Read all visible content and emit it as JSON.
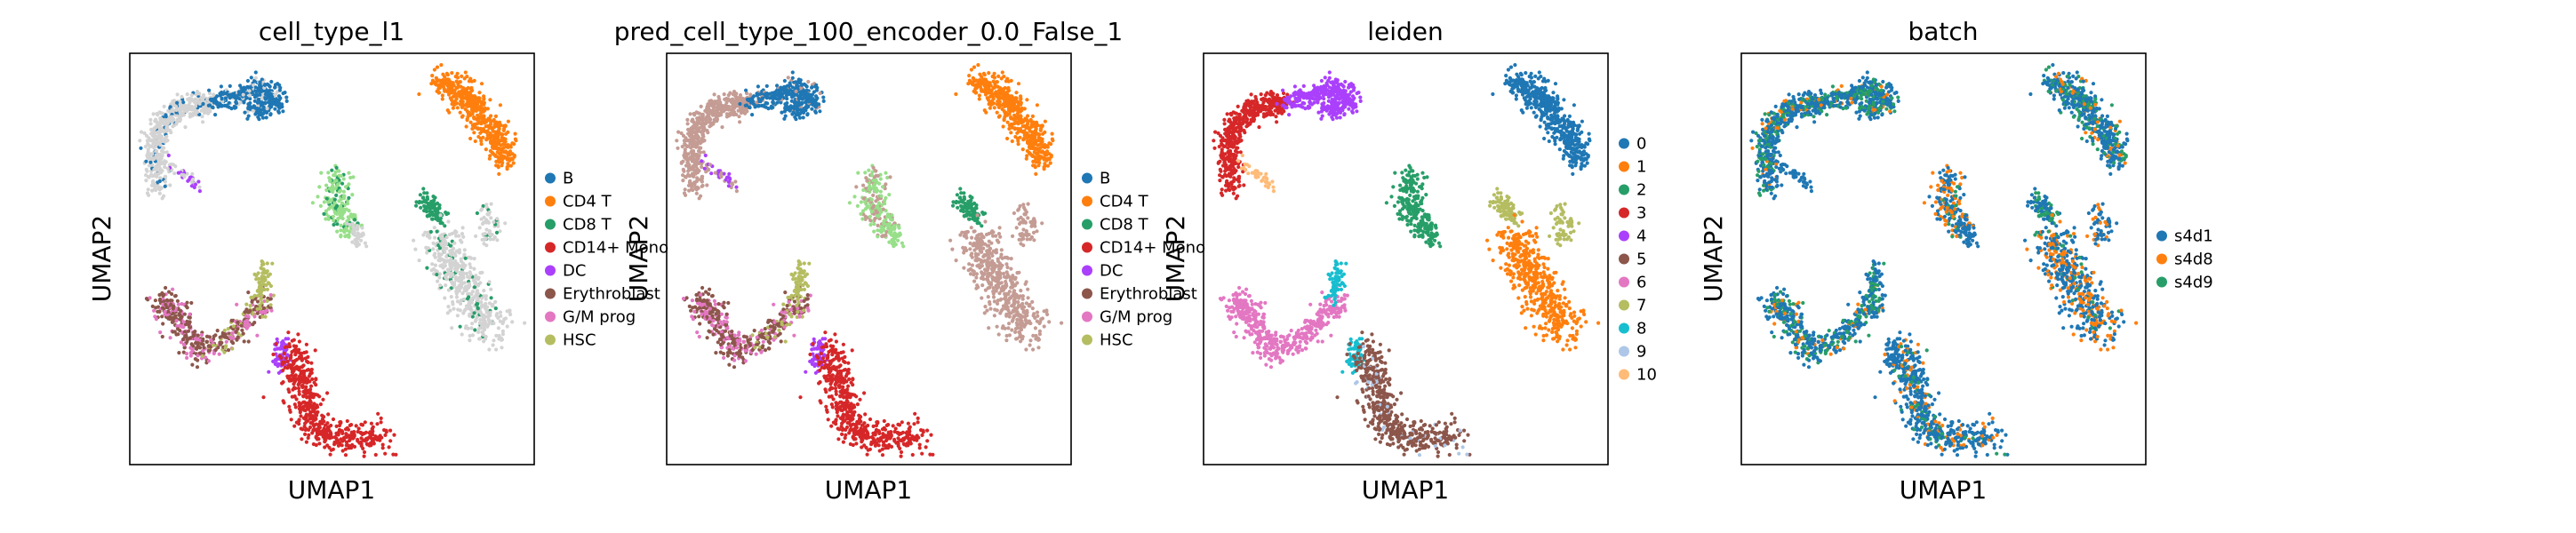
{
  "palette": {
    "B": "#1f77b4",
    "CD4 T": "#ff7f0e",
    "CD8 T": "#279e68",
    "CD14+ Mono": "#d62728",
    "DC": "#aa40fc",
    "Erythroblast": "#8c564b",
    "G/M prog": "#e377c2",
    "HSC": "#b5bd61",
    "leiden_0": "#1f77b4",
    "leiden_1": "#ff7f0e",
    "leiden_2": "#279e68",
    "leiden_3": "#d62728",
    "leiden_4": "#aa40fc",
    "leiden_5": "#8c564b",
    "leiden_6": "#e377c2",
    "leiden_7": "#b5bd61",
    "leiden_8": "#17becf",
    "leiden_9": "#aec7e8",
    "leiden_10": "#ffbb78",
    "s4d1": "#1f77b4",
    "s4d8": "#ff7f0e",
    "s4d9": "#279e68",
    "unlabeled": "#d3d3d3",
    "pred_other": "#c49c94",
    "light_green": "#98df8a"
  },
  "chart_data": [
    {
      "type": "scatter",
      "title": "cell_type_l1",
      "xlabel": "UMAP1",
      "ylabel": "UMAP2",
      "legend_position": "right",
      "legend": [
        "B",
        "CD4 T",
        "CD8 T",
        "CD14+ Mono",
        "DC",
        "Erythroblast",
        "G/M prog",
        "HSC"
      ],
      "grid": false
    },
    {
      "type": "scatter",
      "title": "pred_cell_type_100_encoder_0.0_False_1",
      "xlabel": "UMAP1",
      "ylabel": "UMAP2",
      "legend_position": "right",
      "legend": [
        "B",
        "CD4 T",
        "CD8 T",
        "CD14+ Mono",
        "DC",
        "Erythroblast",
        "G/M prog",
        "HSC"
      ],
      "grid": false
    },
    {
      "type": "scatter",
      "title": "leiden",
      "xlabel": "UMAP1",
      "ylabel": "UMAP2",
      "legend_position": "right",
      "legend": [
        "0",
        "1",
        "2",
        "3",
        "4",
        "5",
        "6",
        "7",
        "8",
        "9",
        "10"
      ],
      "grid": false
    },
    {
      "type": "scatter",
      "title": "batch",
      "xlabel": "UMAP1",
      "ylabel": "UMAP2",
      "legend_position": "right",
      "legend": [
        "s4d1",
        "s4d8",
        "s4d9"
      ],
      "grid": false
    }
  ]
}
